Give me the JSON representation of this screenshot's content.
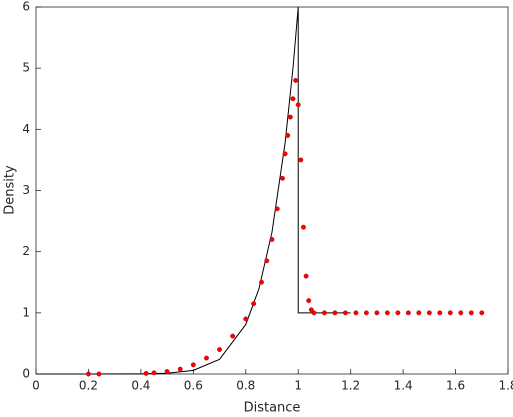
{
  "chart_data": {
    "type": "line_scatter",
    "xlabel": "Distance",
    "ylabel": "Density",
    "xlim": [
      0,
      1.8
    ],
    "ylim": [
      0,
      6
    ],
    "xticks": [
      0,
      0.2,
      0.4,
      0.6,
      0.8,
      1,
      1.2,
      1.4,
      1.6,
      1.8
    ],
    "yticks": [
      0,
      1,
      2,
      3,
      4,
      5,
      6
    ],
    "grid": false,
    "series": [
      {
        "kind": "line",
        "color": "#000000",
        "x": [
          0,
          0.2,
          0.4,
          0.5,
          0.6,
          0.7,
          0.8,
          0.85,
          0.9,
          0.95,
          0.98,
          1,
          1,
          1.2
        ],
        "values": [
          0,
          0,
          0.0016,
          0.012,
          0.06,
          0.24,
          0.81,
          1.39,
          2.32,
          3.78,
          5.0,
          6,
          1,
          1
        ]
      },
      {
        "kind": "scatter",
        "color": "#ff0000",
        "x": [
          0.2,
          0.24,
          0.42,
          0.45,
          0.5,
          0.55,
          0.6,
          0.65,
          0.7,
          0.75,
          0.8,
          0.83,
          0.86,
          0.88,
          0.9,
          0.92,
          0.94,
          0.95,
          0.96,
          0.97,
          0.98,
          0.99,
          1.0,
          1.01,
          1.02,
          1.03,
          1.04,
          1.05,
          1.06,
          1.1,
          1.14,
          1.18,
          1.22,
          1.26,
          1.3,
          1.34,
          1.38,
          1.42,
          1.46,
          1.5,
          1.54,
          1.58,
          1.62,
          1.66,
          1.7
        ],
        "values": [
          0,
          0,
          0.01,
          0.02,
          0.04,
          0.08,
          0.15,
          0.26,
          0.4,
          0.62,
          0.9,
          1.15,
          1.5,
          1.85,
          2.2,
          2.7,
          3.2,
          3.6,
          3.9,
          4.2,
          4.5,
          4.8,
          4.4,
          3.5,
          2.4,
          1.6,
          1.2,
          1.05,
          1,
          1,
          1,
          1,
          1,
          1,
          1,
          1,
          1,
          1,
          1,
          1,
          1,
          1,
          1,
          1,
          1
        ]
      }
    ]
  }
}
